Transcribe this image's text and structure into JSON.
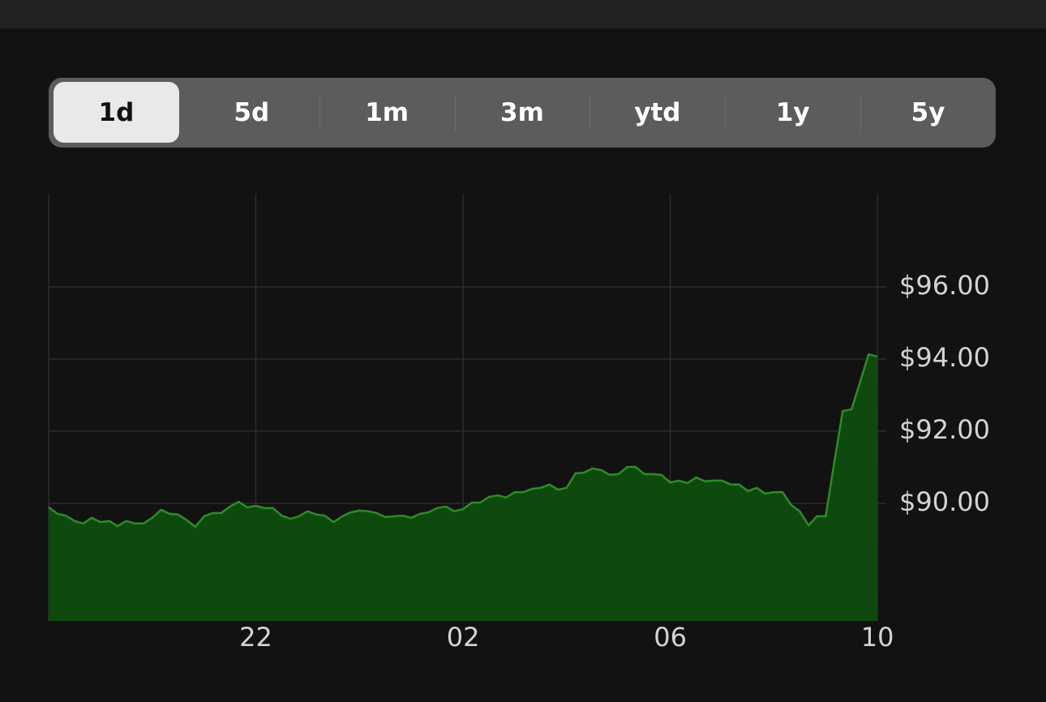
{
  "tabs": {
    "items": [
      "1d",
      "5d",
      "1m",
      "3m",
      "ytd",
      "1y",
      "5y"
    ],
    "selected": 0
  },
  "chart_data": {
    "type": "area",
    "x": [
      18,
      18.17,
      18.33,
      18.5,
      18.67,
      18.83,
      19,
      19.17,
      19.33,
      19.5,
      19.67,
      19.83,
      20,
      20.17,
      20.33,
      20.5,
      20.67,
      20.83,
      21,
      21.17,
      21.33,
      21.5,
      21.67,
      21.83,
      22,
      22.17,
      22.33,
      22.5,
      22.67,
      22.83,
      23,
      23.17,
      23.33,
      23.5,
      23.67,
      23.83,
      24,
      24.17,
      24.33,
      24.5,
      24.67,
      24.83,
      25,
      25.17,
      25.33,
      25.5,
      25.67,
      25.83,
      26,
      26.17,
      26.33,
      26.5,
      26.67,
      26.83,
      27,
      27.17,
      27.33,
      27.5,
      27.67,
      27.83,
      28,
      28.17,
      28.33,
      28.5,
      28.67,
      28.83,
      29,
      29.17,
      29.33,
      29.5,
      29.67,
      29.83,
      30,
      30.17,
      30.33,
      30.5,
      30.67,
      30.83,
      31,
      31.17,
      31.33,
      31.5,
      31.67,
      31.83,
      32,
      32.17,
      32.33,
      32.5,
      32.67,
      32.83,
      33,
      33.17,
      33.33,
      33.5,
      33.67,
      33.83,
      34
    ],
    "values": [
      89.89,
      89.71,
      89.66,
      89.51,
      89.44,
      89.6,
      89.48,
      89.51,
      89.37,
      89.51,
      89.44,
      89.44,
      89.6,
      89.82,
      89.71,
      89.69,
      89.53,
      89.35,
      89.64,
      89.73,
      89.73,
      89.91,
      90.04,
      89.89,
      89.93,
      89.87,
      89.87,
      89.66,
      89.57,
      89.64,
      89.78,
      89.69,
      89.66,
      89.48,
      89.64,
      89.75,
      89.8,
      89.78,
      89.73,
      89.62,
      89.64,
      89.66,
      89.6,
      89.71,
      89.75,
      89.87,
      89.91,
      89.78,
      89.84,
      90.02,
      90.02,
      90.18,
      90.22,
      90.16,
      90.31,
      90.31,
      90.4,
      90.43,
      90.52,
      90.38,
      90.43,
      90.83,
      90.85,
      90.97,
      90.92,
      90.79,
      90.81,
      91.01,
      91.01,
      90.81,
      90.81,
      90.79,
      90.58,
      90.63,
      90.56,
      90.72,
      90.61,
      90.63,
      90.63,
      90.52,
      90.52,
      90.34,
      90.43,
      90.27,
      90.31,
      90.31,
      89.96,
      89.78,
      89.39,
      89.64,
      89.64,
      91.17,
      92.56,
      92.61,
      93.39,
      94.13,
      94.07
    ],
    "color": "#2f8a2a",
    "fill_color": "#0e4a0e",
    "grid": true,
    "xlim": [
      18,
      34.17
    ],
    "ylim": [
      86.74,
      98.56
    ],
    "xticks": [
      22,
      {
        "value": 26,
        "label": "02"
      },
      {
        "value": 30,
        "label": "06"
      },
      {
        "value": 34,
        "label": "10"
      }
    ],
    "yticks": [
      {
        "value": 90,
        "label": "$90.00"
      },
      {
        "value": 92,
        "label": "$92.00"
      },
      {
        "value": 94,
        "label": "$94.00"
      },
      {
        "value": 96,
        "label": "$96.00"
      }
    ]
  }
}
